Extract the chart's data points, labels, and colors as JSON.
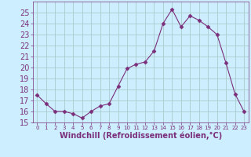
{
  "x": [
    0,
    1,
    2,
    3,
    4,
    5,
    6,
    7,
    8,
    9,
    10,
    11,
    12,
    13,
    14,
    15,
    16,
    17,
    18,
    19,
    20,
    21,
    22,
    23
  ],
  "y": [
    17.5,
    16.7,
    16.0,
    16.0,
    15.8,
    15.4,
    16.0,
    16.5,
    16.7,
    18.3,
    19.9,
    20.3,
    20.5,
    21.5,
    24.0,
    25.3,
    23.7,
    24.7,
    24.3,
    23.7,
    23.0,
    20.4,
    17.6,
    16.0
  ],
  "line_color": "#7b2f7b",
  "marker": "D",
  "marker_size": 2.5,
  "bg_color": "#cceeff",
  "grid_color": "#aacccc",
  "xlabel": "Windchill (Refroidissement éolien,°C)",
  "ylim": [
    15,
    26
  ],
  "xlim": [
    -0.5,
    23.5
  ],
  "yticks": [
    15,
    16,
    17,
    18,
    19,
    20,
    21,
    22,
    23,
    24,
    25
  ],
  "xticks": [
    0,
    1,
    2,
    3,
    4,
    5,
    6,
    7,
    8,
    9,
    10,
    11,
    12,
    13,
    14,
    15,
    16,
    17,
    18,
    19,
    20,
    21,
    22,
    23
  ],
  "tick_color": "#7b2f7b",
  "label_color": "#7b2f7b",
  "ytick_fontsize": 7,
  "xtick_fontsize": 5,
  "xlabel_fontsize": 7
}
